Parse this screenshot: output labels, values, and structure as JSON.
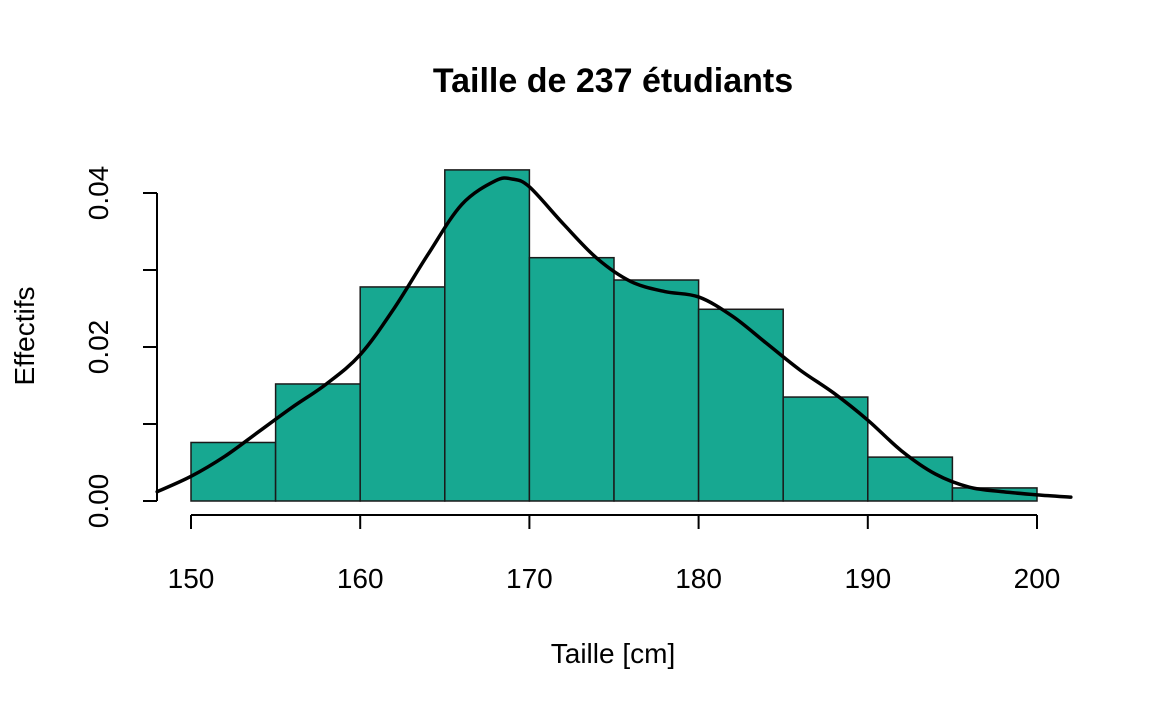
{
  "chart_data": {
    "type": "bar",
    "title": "Taille de 237 étudiants",
    "xlabel": "Taille [cm]",
    "ylabel": "Effectifs",
    "bin_edges": [
      150,
      155,
      160,
      165,
      170,
      175,
      180,
      185,
      190,
      195,
      200
    ],
    "values": [
      0.0076,
      0.0152,
      0.0278,
      0.043,
      0.0316,
      0.0287,
      0.0249,
      0.0135,
      0.0057,
      0.0017
    ],
    "xlim": [
      148,
      202
    ],
    "ylim": [
      0,
      0.043
    ],
    "xticks": [
      150,
      160,
      170,
      180,
      190,
      200
    ],
    "yticks": [
      0.0,
      0.01,
      0.02,
      0.03,
      0.04
    ],
    "ytick_labels": [
      "0.00",
      "",
      "0.02",
      "",
      "0.04"
    ],
    "bar_color": "#17A891",
    "density_curve": {
      "x": [
        148,
        150,
        152,
        154,
        156,
        158,
        160,
        162,
        164,
        166,
        168,
        169,
        170,
        172,
        174,
        176,
        178,
        180,
        182,
        184,
        186,
        188,
        190,
        192,
        194,
        196,
        198,
        200,
        202
      ],
      "y": [
        0.0012,
        0.0032,
        0.0058,
        0.009,
        0.0122,
        0.0152,
        0.019,
        0.025,
        0.032,
        0.0385,
        0.0416,
        0.0418,
        0.0408,
        0.036,
        0.0315,
        0.0285,
        0.0272,
        0.0265,
        0.024,
        0.0205,
        0.017,
        0.014,
        0.0105,
        0.0065,
        0.0035,
        0.0018,
        0.0012,
        0.0008,
        0.0005
      ]
    }
  }
}
